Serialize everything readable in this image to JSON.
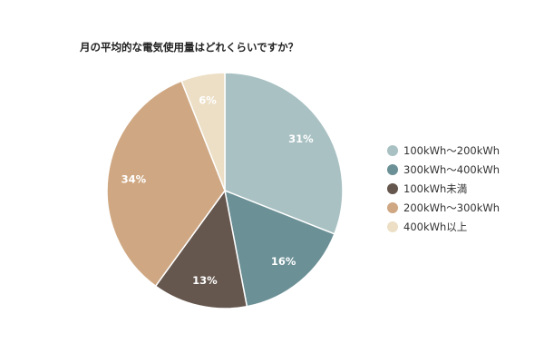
{
  "chart_data": {
    "type": "pie",
    "title": "月の平均的な電気使用量はどれくらいですか？",
    "categories": [
      "100kWh〜200kWh",
      "300kWh〜400kWh",
      "100kWh未満",
      "200kWh〜300kWh",
      "400kWh以上"
    ],
    "values": [
      31,
      16,
      13,
      34,
      6
    ],
    "labels": [
      "31%",
      "16%",
      "13%",
      "34%",
      "6%"
    ],
    "colors": [
      "#a9c1c3",
      "#6b9096",
      "#65574e",
      "#cfa883",
      "#ecdfc6"
    ],
    "legend_position": "right"
  }
}
